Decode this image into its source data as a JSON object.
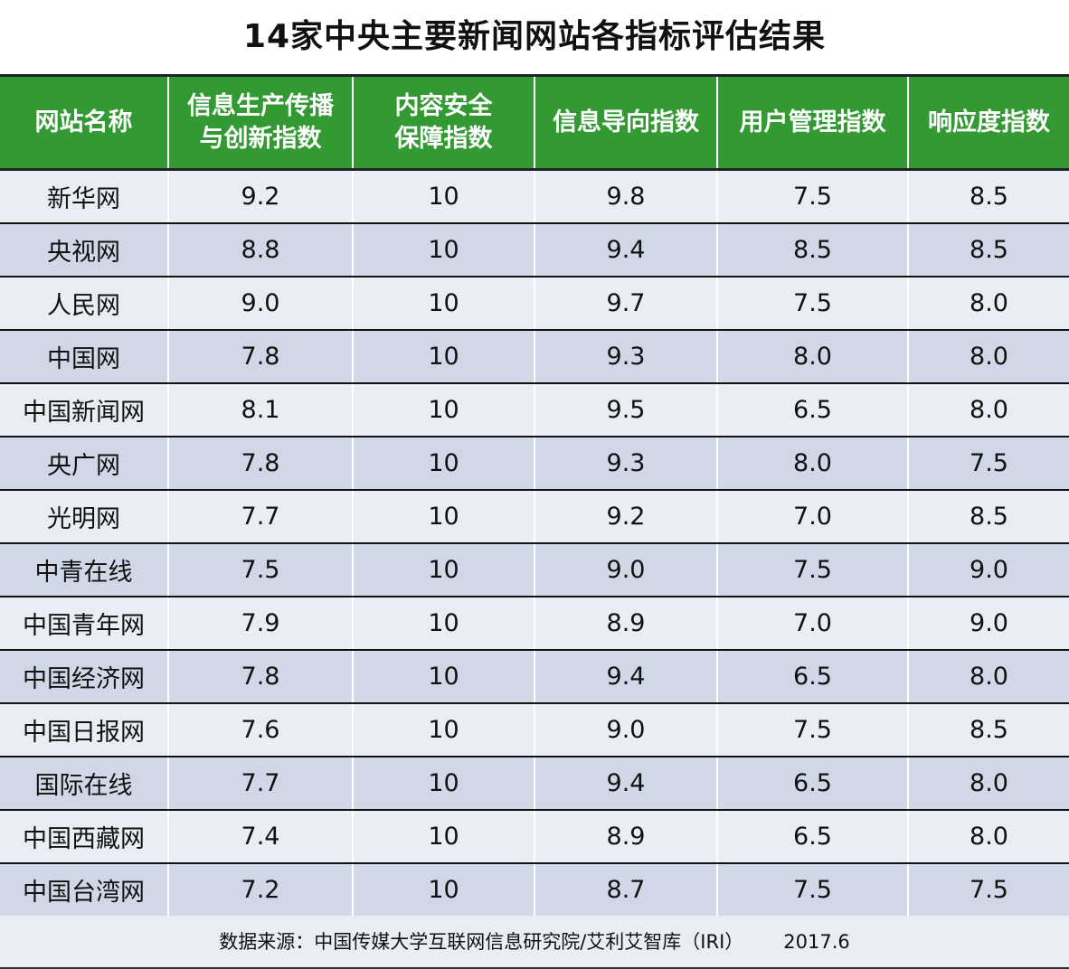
{
  "title": "14家中央主要新闻网站各指标评估结果",
  "chart_data": {
    "type": "table",
    "title": "14家中央主要新闻网站各指标评估结果",
    "columns": [
      "网站名称",
      "信息生产传播与创新指数",
      "内容安全保障指数",
      "信息导向指数",
      "用户管理指数",
      "响应度指数"
    ],
    "header_lines": [
      [
        "网站名称"
      ],
      [
        "信息生产传播",
        "与创新指数"
      ],
      [
        "内容安全",
        "保障指数"
      ],
      [
        "信息导向指数"
      ],
      [
        "用户管理指数"
      ],
      [
        "响应度指数"
      ]
    ],
    "rows": [
      [
        "新华网",
        "9.2",
        "10",
        "9.8",
        "7.5",
        "8.5"
      ],
      [
        "央视网",
        "8.8",
        "10",
        "9.4",
        "8.5",
        "8.5"
      ],
      [
        "人民网",
        "9.0",
        "10",
        "9.7",
        "7.5",
        "8.0"
      ],
      [
        "中国网",
        "7.8",
        "10",
        "9.3",
        "8.0",
        "8.0"
      ],
      [
        "中国新闻网",
        "8.1",
        "10",
        "9.5",
        "6.5",
        "8.0"
      ],
      [
        "央广网",
        "7.8",
        "10",
        "9.3",
        "8.0",
        "7.5"
      ],
      [
        "光明网",
        "7.7",
        "10",
        "9.2",
        "7.0",
        "8.5"
      ],
      [
        "中青在线",
        "7.5",
        "10",
        "9.0",
        "7.5",
        "9.0"
      ],
      [
        "中国青年网",
        "7.9",
        "10",
        "8.9",
        "7.0",
        "9.0"
      ],
      [
        "中国经济网",
        "7.8",
        "10",
        "9.4",
        "6.5",
        "8.0"
      ],
      [
        "中国日报网",
        "7.6",
        "10",
        "9.0",
        "7.5",
        "8.5"
      ],
      [
        "国际在线",
        "7.7",
        "10",
        "9.4",
        "6.5",
        "8.0"
      ],
      [
        "中国西藏网",
        "7.4",
        "10",
        "8.9",
        "6.5",
        "8.0"
      ],
      [
        "中国台湾网",
        "7.2",
        "10",
        "8.7",
        "7.5",
        "7.5"
      ]
    ]
  },
  "footer": {
    "source": "数据来源：中国传媒大学互联网信息研究院/艾利艾智库（IRI）",
    "date": "2017.6"
  },
  "colors": {
    "header": "#339933",
    "row_odd": "#e9edf4",
    "row_even": "#d0d8e8"
  }
}
